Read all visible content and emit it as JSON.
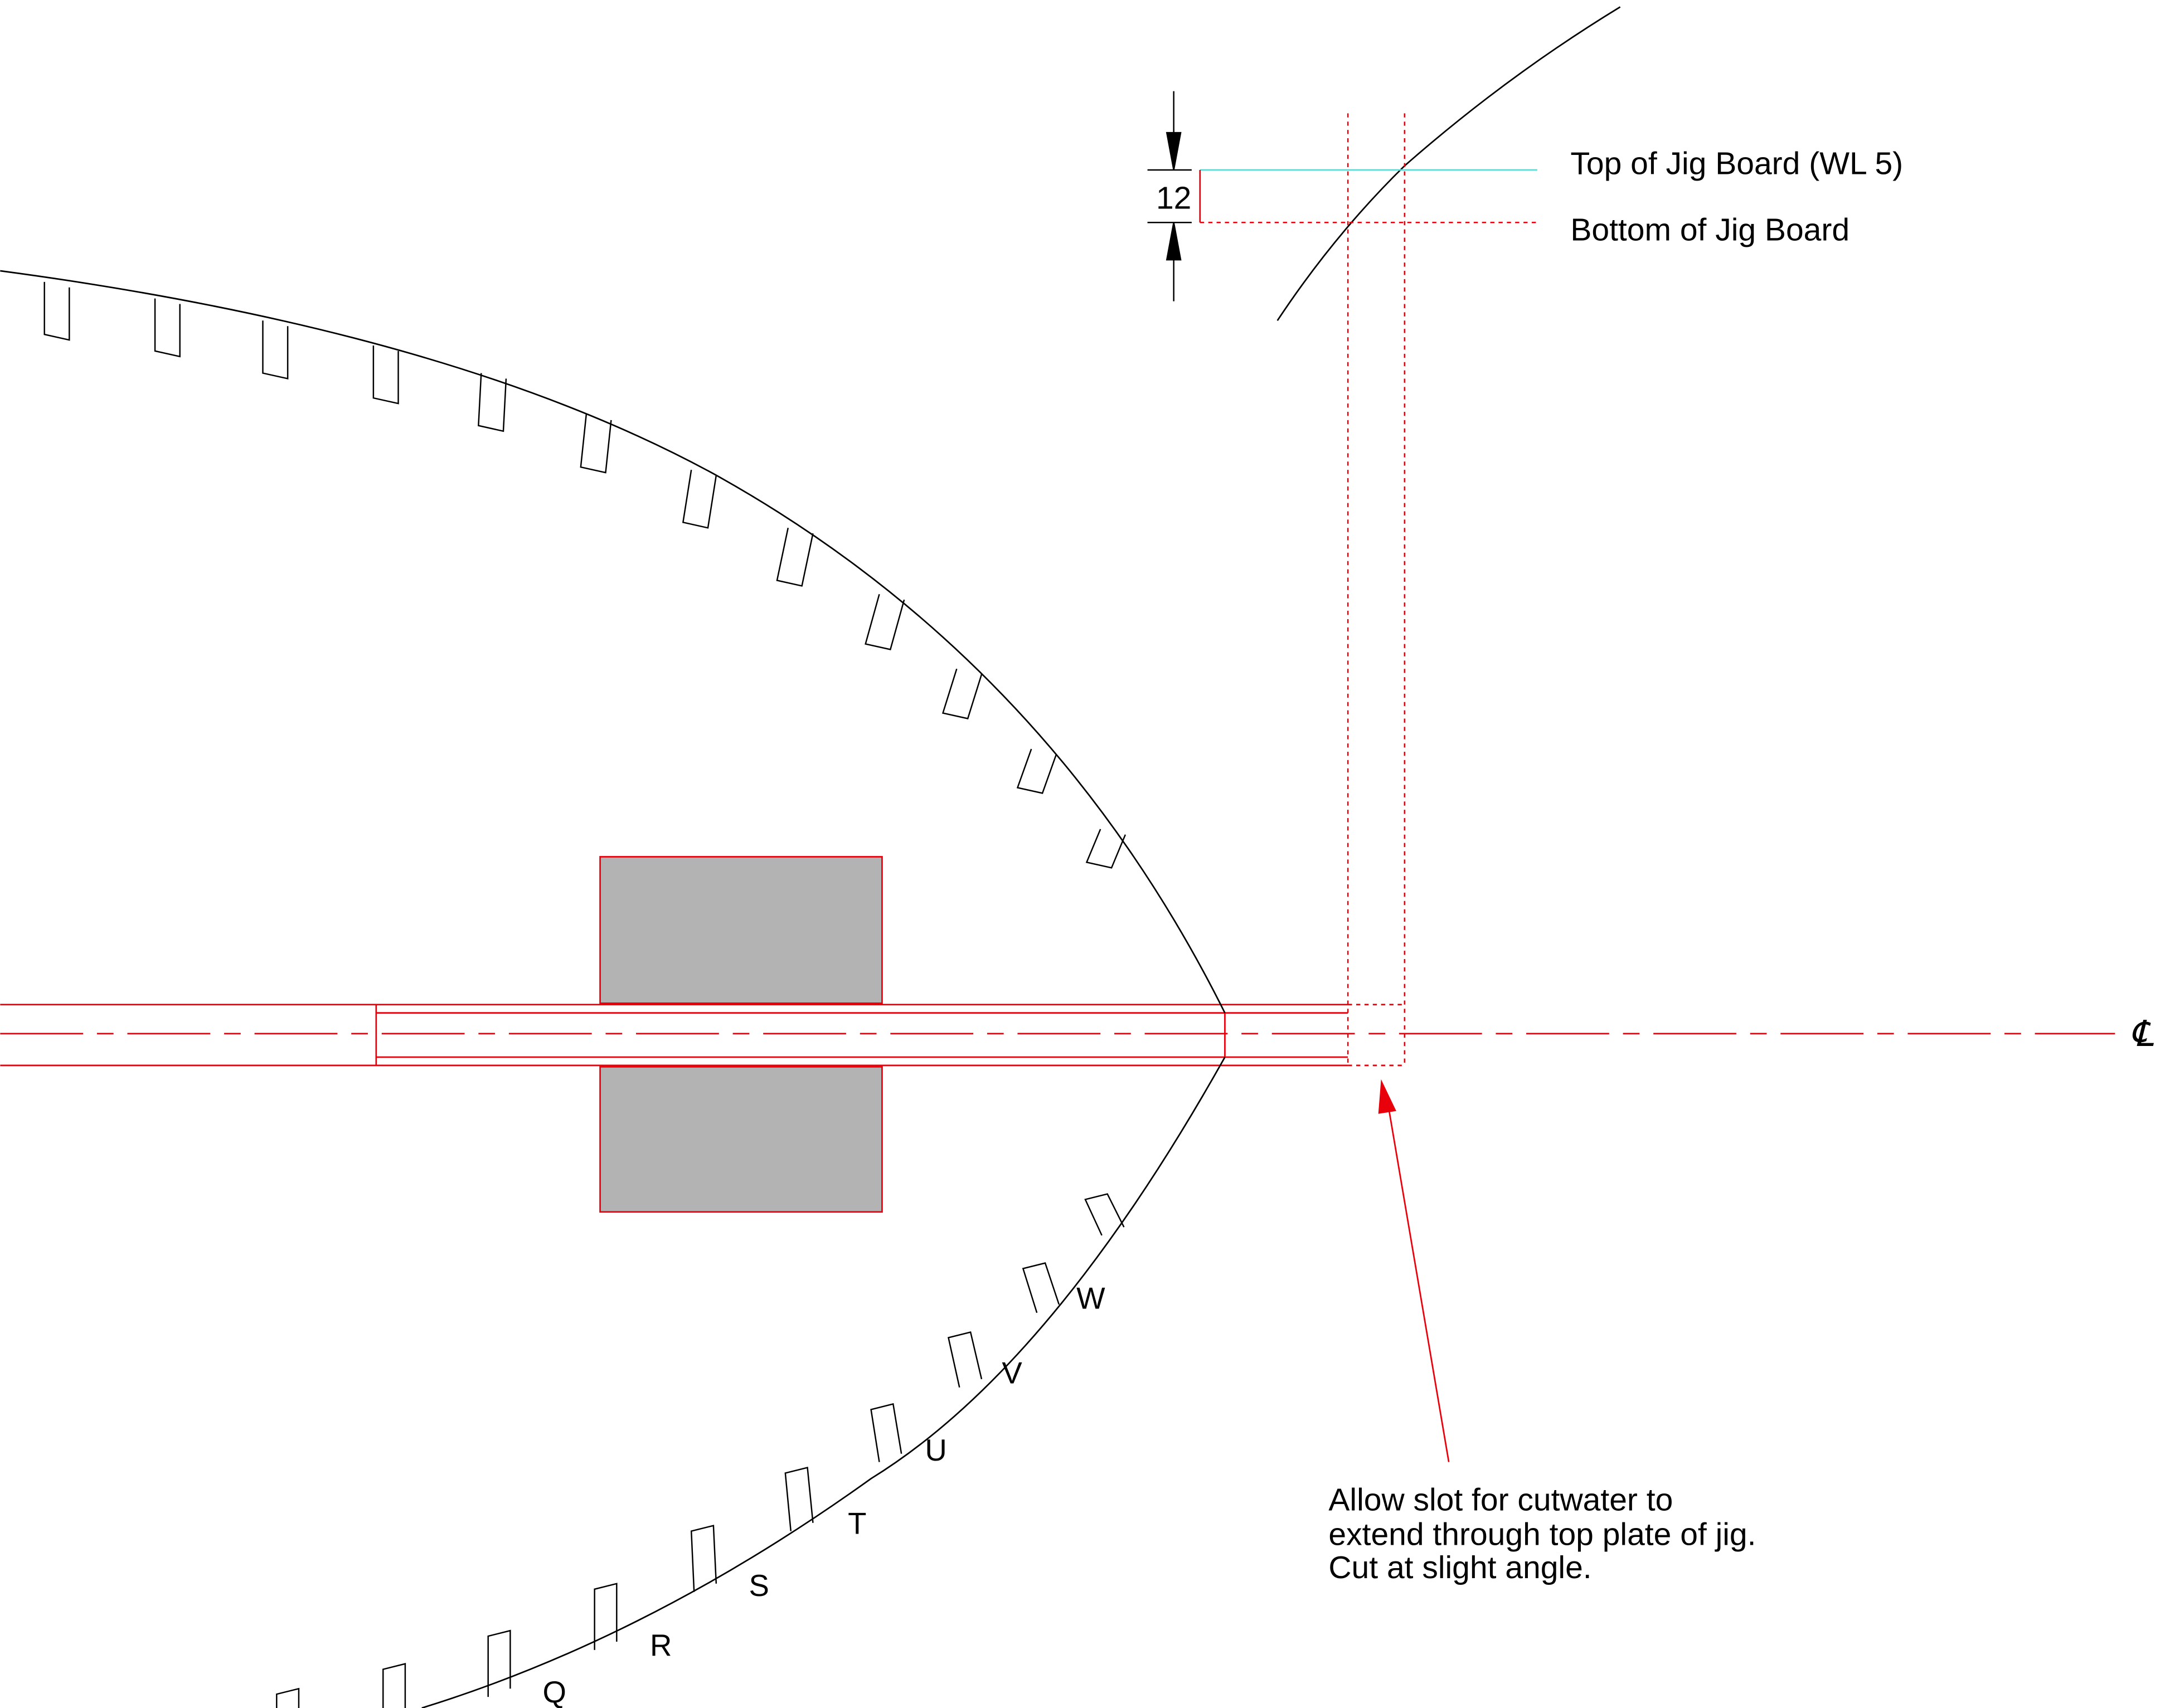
{
  "dimension": {
    "value": "12"
  },
  "labels": {
    "top_of_jig_board": "Top of Jig Board (WL 5)",
    "bottom_of_jig_board": "Bottom of Jig Board",
    "centerline_symbol": "℄"
  },
  "note": {
    "line1": "Allow slot for cutwater to",
    "line2": "extend through top plate of jig.",
    "line3": "Cut at slight angle."
  },
  "station_letters": [
    "Q",
    "R",
    "S",
    "T",
    "U",
    "V",
    "W"
  ],
  "colors": {
    "outline": "#000000",
    "construction": "#e8000b",
    "top_of_jig_line": "#55dcd6",
    "block_fill": "#b3b3b3"
  }
}
